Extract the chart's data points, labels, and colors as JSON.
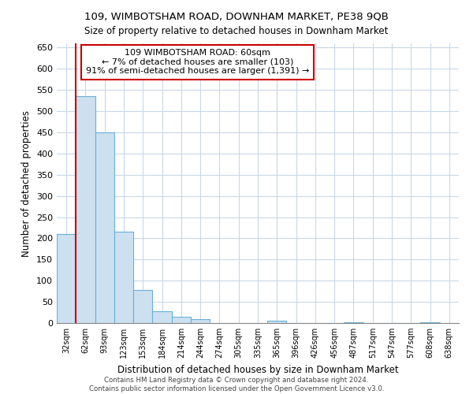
{
  "title": "109, WIMBOTSHAM ROAD, DOWNHAM MARKET, PE38 9QB",
  "subtitle": "Size of property relative to detached houses in Downham Market",
  "xlabel": "Distribution of detached houses by size in Downham Market",
  "ylabel": "Number of detached properties",
  "bar_fill_color": "#cce0f0",
  "bar_edge_color": "#6aafd6",
  "marker_line_color": "#cc0000",
  "categories": [
    "32sqm",
    "62sqm",
    "93sqm",
    "123sqm",
    "153sqm",
    "184sqm",
    "214sqm",
    "244sqm",
    "274sqm",
    "305sqm",
    "335sqm",
    "365sqm",
    "396sqm",
    "426sqm",
    "456sqm",
    "487sqm",
    "517sqm",
    "547sqm",
    "577sqm",
    "608sqm",
    "638sqm"
  ],
  "values": [
    210,
    535,
    450,
    215,
    78,
    28,
    15,
    10,
    0,
    0,
    0,
    5,
    0,
    0,
    0,
    2,
    0,
    0,
    0,
    2,
    0
  ],
  "ylim": [
    0,
    660
  ],
  "yticks": [
    0,
    50,
    100,
    150,
    200,
    250,
    300,
    350,
    400,
    450,
    500,
    550,
    600,
    650
  ],
  "annotation_title": "109 WIMBOTSHAM ROAD: 60sqm",
  "annotation_line1": "← 7% of detached houses are smaller (103)",
  "annotation_line2": "91% of semi-detached houses are larger (1,391) →",
  "footer_line1": "Contains HM Land Registry data © Crown copyright and database right 2024.",
  "footer_line2": "Contains public sector information licensed under the Open Government Licence v3.0.",
  "background_color": "#ffffff",
  "grid_color": "#c8d8e8"
}
